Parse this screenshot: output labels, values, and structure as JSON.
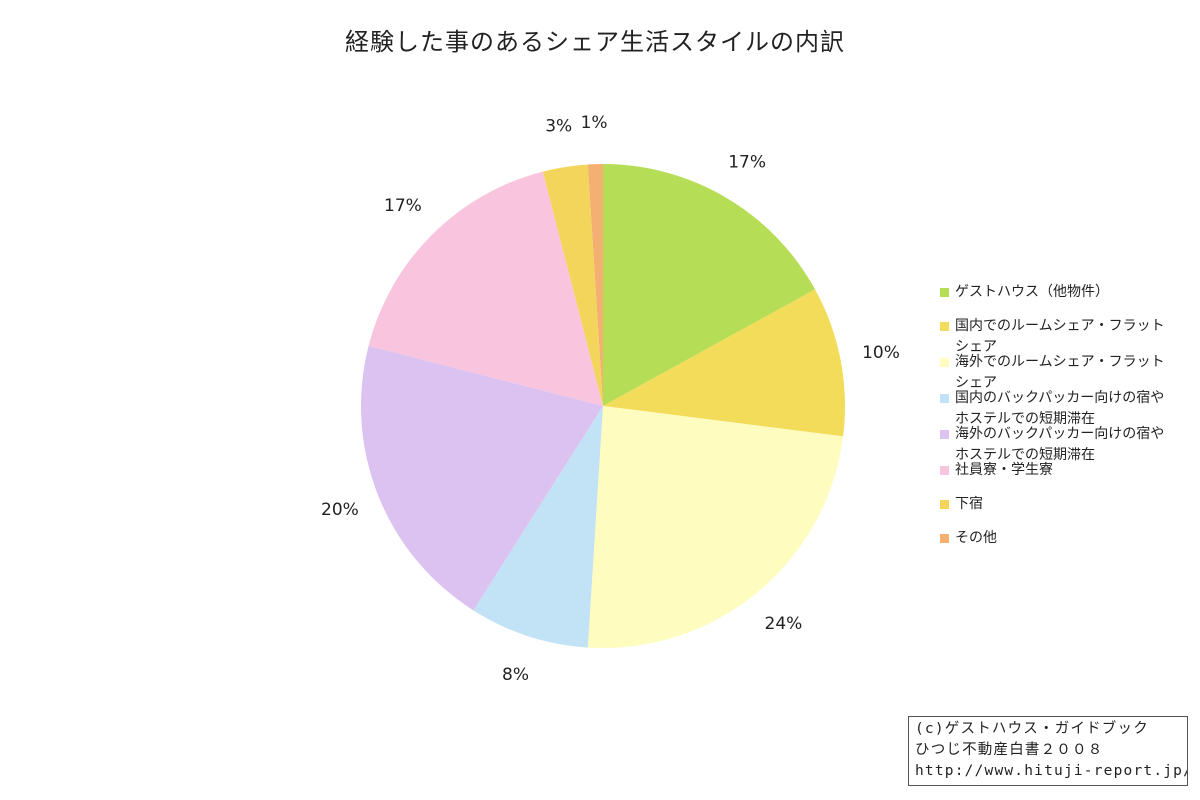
{
  "chart_data": {
    "type": "pie",
    "title": "経験した事のあるシェア生活スタイルの内訳",
    "slices": [
      {
        "label": "ゲストハウス（他物件）",
        "value": 17,
        "value_label": "17%",
        "color": "#b5dd55"
      },
      {
        "label": "国内でのルームシェア・フラットシェア",
        "value": 10,
        "value_label": "10%",
        "color": "#f2dc5a"
      },
      {
        "label": "海外でのルームシェア・フラットシェア",
        "value": 24,
        "value_label": "24%",
        "color": "#fefcbe"
      },
      {
        "label": "国内のバックパッカー向けの宿やホステルでの短期滞在",
        "value": 8,
        "value_label": "8%",
        "color": "#c2e2f5"
      },
      {
        "label": "海外のバックパッカー向けの宿やホステルでの短期滞在",
        "value": 20,
        "value_label": "20%",
        "color": "#dcc2f0"
      },
      {
        "label": "社員寮・学生寮",
        "value": 17,
        "value_label": "17%",
        "color": "#f8c4de"
      },
      {
        "label": "下宿",
        "value": 3,
        "value_label": "3%",
        "color": "#f3d55c"
      },
      {
        "label": "その他",
        "value": 1,
        "value_label": "1%",
        "color": "#f4b071"
      }
    ],
    "legend_position": "right"
  },
  "credit": {
    "line1": "(c)ゲストハウス・ガイドブック",
    "line2": "ひつじ不動産白書２００８",
    "line3": "http://www.hituji-report.jp/"
  }
}
